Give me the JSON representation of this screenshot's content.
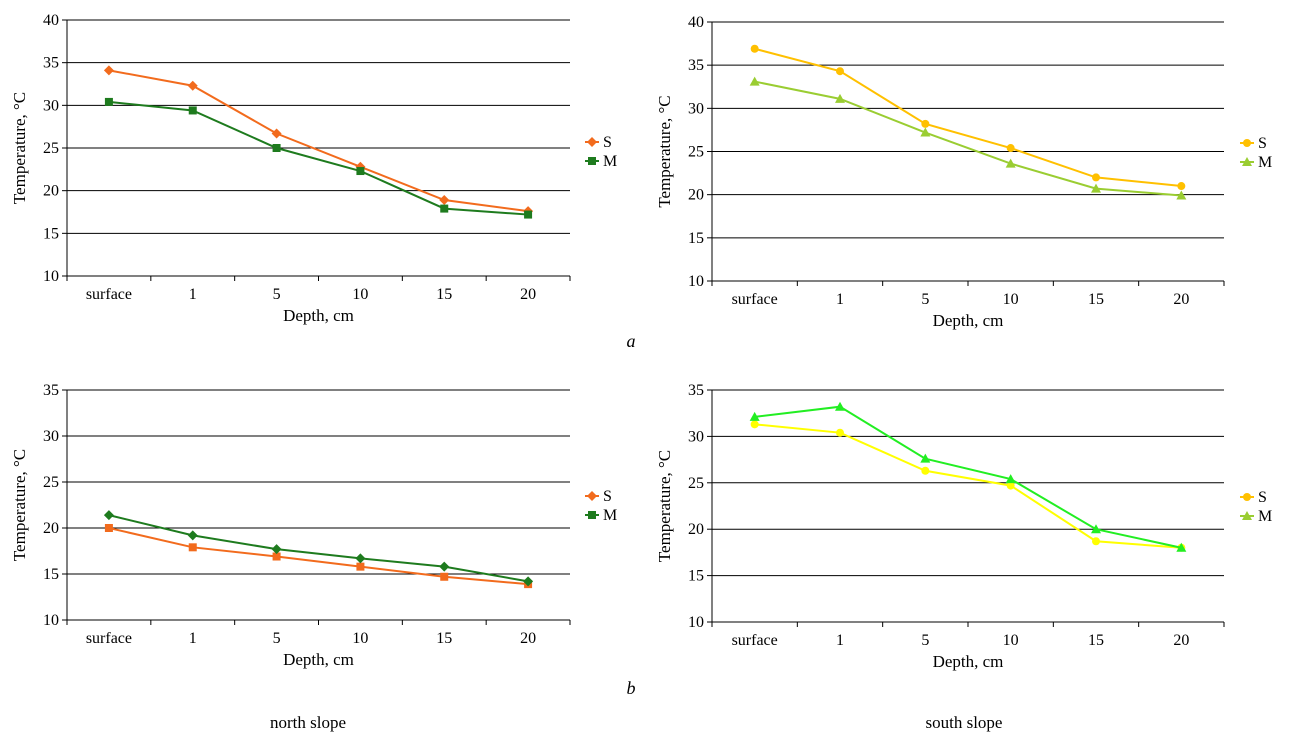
{
  "figure": {
    "row_labels": [
      "a",
      "b"
    ],
    "column_labels": [
      "north slope",
      "south slope"
    ]
  },
  "chart_data": [
    {
      "id": "a-north",
      "type": "line",
      "xlabel": "Depth, cm",
      "ylabel": "Temperature, °C",
      "categories": [
        "surface",
        "1",
        "5",
        "10",
        "15",
        "20"
      ],
      "ylim": [
        10,
        40
      ],
      "yticks": [
        10,
        15,
        20,
        25,
        30,
        35,
        40
      ],
      "grid": true,
      "legend": "right",
      "series": [
        {
          "name": "S",
          "values": [
            34.1,
            32.3,
            26.7,
            22.8,
            18.9,
            17.6
          ],
          "color": "#f26b1d",
          "marker": "diamond"
        },
        {
          "name": "M",
          "values": [
            30.4,
            29.4,
            25.0,
            22.3,
            17.9,
            17.2
          ],
          "color": "#1e7b1e",
          "marker": "square"
        }
      ]
    },
    {
      "id": "a-south",
      "type": "line",
      "xlabel": "Depth, cm",
      "ylabel": "Temperature, °C",
      "categories": [
        "surface",
        "1",
        "5",
        "10",
        "15",
        "20"
      ],
      "ylim": [
        10,
        40
      ],
      "yticks": [
        10,
        15,
        20,
        25,
        30,
        35,
        40
      ],
      "grid": true,
      "legend": "right",
      "series": [
        {
          "name": "S",
          "values": [
            36.9,
            34.3,
            28.2,
            25.4,
            22.0,
            21.0
          ],
          "color": "#ffc000",
          "marker": "circle"
        },
        {
          "name": "M",
          "values": [
            33.1,
            31.1,
            27.2,
            23.6,
            20.7,
            19.9
          ],
          "color": "#9acd32",
          "marker": "triangle"
        }
      ]
    },
    {
      "id": "b-north",
      "type": "line",
      "xlabel": "Depth, cm",
      "ylabel": "Temperature, °C",
      "categories": [
        "surface",
        "1",
        "5",
        "10",
        "15",
        "20"
      ],
      "ylim": [
        10,
        35
      ],
      "yticks": [
        10,
        15,
        20,
        25,
        30,
        35
      ],
      "grid": true,
      "legend": "right",
      "series": [
        {
          "name": "S",
          "values": [
            20.0,
            17.9,
            16.9,
            15.8,
            14.7,
            13.9
          ],
          "color": "#f26b1d",
          "marker": "square"
        },
        {
          "name": "M",
          "values": [
            21.4,
            19.2,
            17.7,
            16.7,
            15.8,
            14.2
          ],
          "color": "#1e7b1e",
          "marker": "diamond"
        }
      ],
      "legend_markers": [
        "diamond",
        "square"
      ]
    },
    {
      "id": "b-south",
      "type": "line",
      "xlabel": "Depth, cm",
      "ylabel": "Temperature, °C",
      "categories": [
        "surface",
        "1",
        "5",
        "10",
        "15",
        "20"
      ],
      "ylim": [
        10,
        35
      ],
      "yticks": [
        10,
        15,
        20,
        25,
        30,
        35
      ],
      "grid": true,
      "legend": "right",
      "series": [
        {
          "name": "S",
          "values": [
            31.3,
            30.4,
            26.3,
            24.7,
            18.7,
            18.0
          ],
          "color": "#ffff00",
          "marker": "circle",
          "legend_color": "#ffc000"
        },
        {
          "name": "M",
          "values": [
            32.1,
            33.2,
            27.6,
            25.4,
            20.0,
            18.0
          ],
          "color": "#22ee22",
          "marker": "triangle",
          "legend_color": "#9acd32"
        }
      ]
    }
  ]
}
